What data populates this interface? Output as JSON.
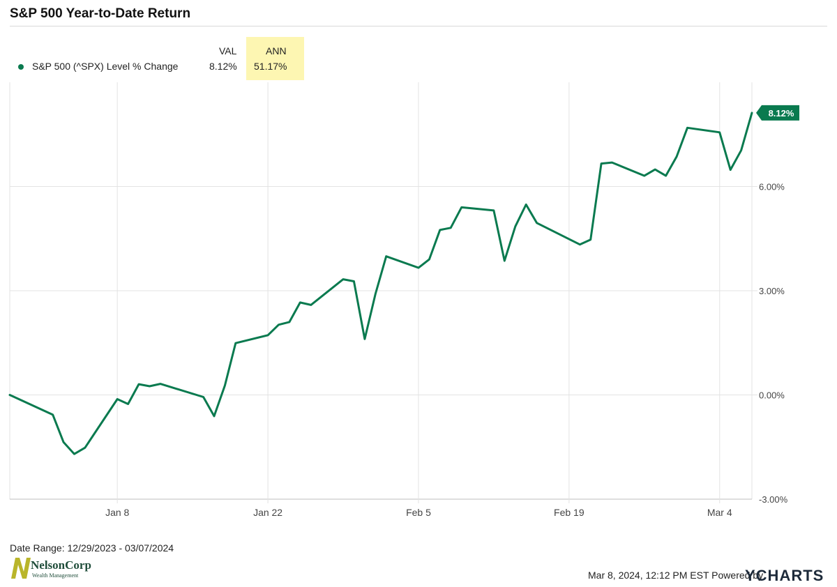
{
  "title": "S&P 500 Year-to-Date Return",
  "header": {
    "val_label": "VAL",
    "ann_label": "ANN",
    "series_label": "S&P 500 (^SPX) Level % Change",
    "val_value": "8.12%",
    "ann_value": "51.17%"
  },
  "colors": {
    "line": "#0a7a4f",
    "ann_highlight": "#fdf6b2",
    "grid": "#e3e3e3"
  },
  "chart_data": {
    "type": "line",
    "title": "S&P 500 Year-to-Date Return",
    "xlabel": "",
    "ylabel": "",
    "ylim": [
      -3.0,
      9.0
    ],
    "xlim": [
      "2023-12-29",
      "2024-03-07"
    ],
    "x_tick_labels": [
      "Jan 8",
      "Jan 22",
      "Feb 5",
      "Feb 19",
      "Mar 4"
    ],
    "x_tick_dates": [
      "2024-01-08",
      "2024-01-22",
      "2024-02-05",
      "2024-02-19",
      "2024-03-04"
    ],
    "y_ticks": [
      -3,
      0,
      3,
      6
    ],
    "y_tick_labels": [
      "-3.00%",
      "0.00%",
      "3.00%",
      "6.00%"
    ],
    "grid": true,
    "end_label": "8.12%",
    "series": [
      {
        "x": [
          "2023-12-29",
          "2024-01-02",
          "2024-01-03",
          "2024-01-04",
          "2024-01-05",
          "2024-01-08",
          "2024-01-09",
          "2024-01-10",
          "2024-01-11",
          "2024-01-12",
          "2024-01-16",
          "2024-01-17",
          "2024-01-18",
          "2024-01-19",
          "2024-01-22",
          "2024-01-23",
          "2024-01-24",
          "2024-01-25",
          "2024-01-26",
          "2024-01-29",
          "2024-01-30",
          "2024-01-31",
          "2024-02-01",
          "2024-02-02",
          "2024-02-05",
          "2024-02-06",
          "2024-02-07",
          "2024-02-08",
          "2024-02-09",
          "2024-02-12",
          "2024-02-13",
          "2024-02-14",
          "2024-02-15",
          "2024-02-16",
          "2024-02-20",
          "2024-02-21",
          "2024-02-22",
          "2024-02-23",
          "2024-02-26",
          "2024-02-27",
          "2024-02-28",
          "2024-02-29",
          "2024-03-01",
          "2024-03-04",
          "2024-03-05",
          "2024-03-06",
          "2024-03-07"
        ],
        "values": [
          0.0,
          -0.57,
          -1.36,
          -1.7,
          -1.52,
          -0.12,
          -0.26,
          0.31,
          0.25,
          0.32,
          -0.06,
          -0.61,
          0.27,
          1.49,
          1.72,
          2.02,
          2.1,
          2.66,
          2.59,
          3.33,
          3.27,
          1.61,
          2.91,
          3.99,
          3.66,
          3.9,
          4.75,
          4.81,
          5.4,
          5.31,
          3.86,
          4.85,
          5.48,
          4.95,
          4.33,
          4.47,
          6.66,
          6.69,
          6.31,
          6.49,
          6.31,
          6.86,
          7.69,
          7.56,
          6.48,
          7.04,
          8.12
        ]
      }
    ]
  },
  "footer": {
    "date_range": "Date Range: 12/29/2023 - 03/07/2024",
    "timestamp": "Mar 8, 2024, 12:12 PM EST Powered by",
    "brand": "YCHARTS",
    "logo_name": "NelsonCorp",
    "logo_sub": "Wealth Management"
  }
}
